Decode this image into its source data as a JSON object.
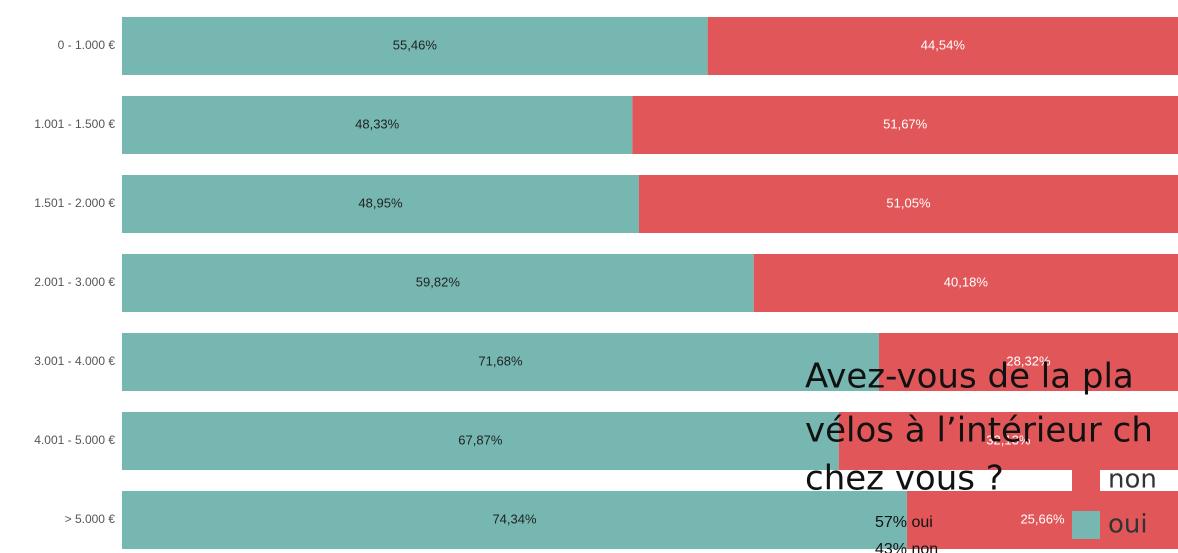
{
  "chart_data": {
    "type": "stacked_bar_horizontal",
    "categories": [
      "0 - 1.000 €",
      "1.001 - 1.500 €",
      "1.501 - 2.000 €",
      "2.001 - 3.000 €",
      "3.001 - 4.000 €",
      "4.001 - 5.000 €",
      "> 5.000 €"
    ],
    "series": [
      {
        "name": "oui",
        "color": "#76b7b2",
        "values": [
          55.46,
          48.33,
          48.95,
          59.82,
          71.68,
          67.87,
          74.34
        ],
        "value_labels": [
          "55,46%",
          "48,33%",
          "48,95%",
          "59,82%",
          "71,68%",
          "67,87%",
          "74,34%"
        ]
      },
      {
        "name": "non",
        "color": "#e15759",
        "values": [
          44.54,
          51.67,
          51.05,
          40.18,
          28.32,
          32.13,
          25.66
        ],
        "value_labels": [
          "44,54%",
          "51,67%",
          "51,05%",
          "40,18%",
          "28,32%",
          "32,13%",
          "25,66%"
        ]
      }
    ],
    "xlim": [
      0,
      100
    ],
    "annotations": [
      "Avez-vous de la pla",
      "vélos à l’intérieur ch",
      "chez vous ?",
      "57% oui",
      "43% non"
    ]
  }
}
